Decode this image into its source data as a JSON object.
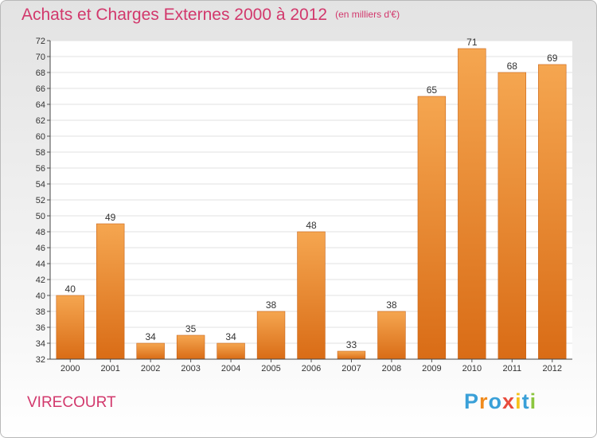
{
  "title": "Achats et Charges Externes 2000 à 2012",
  "unit_note": "(en milliers d'€)",
  "place": "VIRECOURT",
  "logo": "Proxiti",
  "colors": {
    "title": "#d2386c",
    "bar_top": "#f5a650",
    "bar_bottom": "#d96c16"
  },
  "chart_data": {
    "type": "bar",
    "title": "Achats et Charges Externes 2000 à 2012",
    "xlabel": "",
    "ylabel": "",
    "categories": [
      "2000",
      "2001",
      "2002",
      "2003",
      "2004",
      "2005",
      "2006",
      "2007",
      "2008",
      "2009",
      "2010",
      "2011",
      "2012"
    ],
    "values": [
      40,
      49,
      34,
      35,
      34,
      38,
      48,
      33,
      38,
      65,
      71,
      68,
      69
    ],
    "ylim": [
      32,
      72
    ],
    "yticks": [
      32,
      34,
      36,
      38,
      40,
      42,
      44,
      46,
      48,
      50,
      52,
      54,
      56,
      58,
      60,
      62,
      64,
      66,
      68,
      70,
      72
    ],
    "grid": true,
    "legend": "none"
  }
}
